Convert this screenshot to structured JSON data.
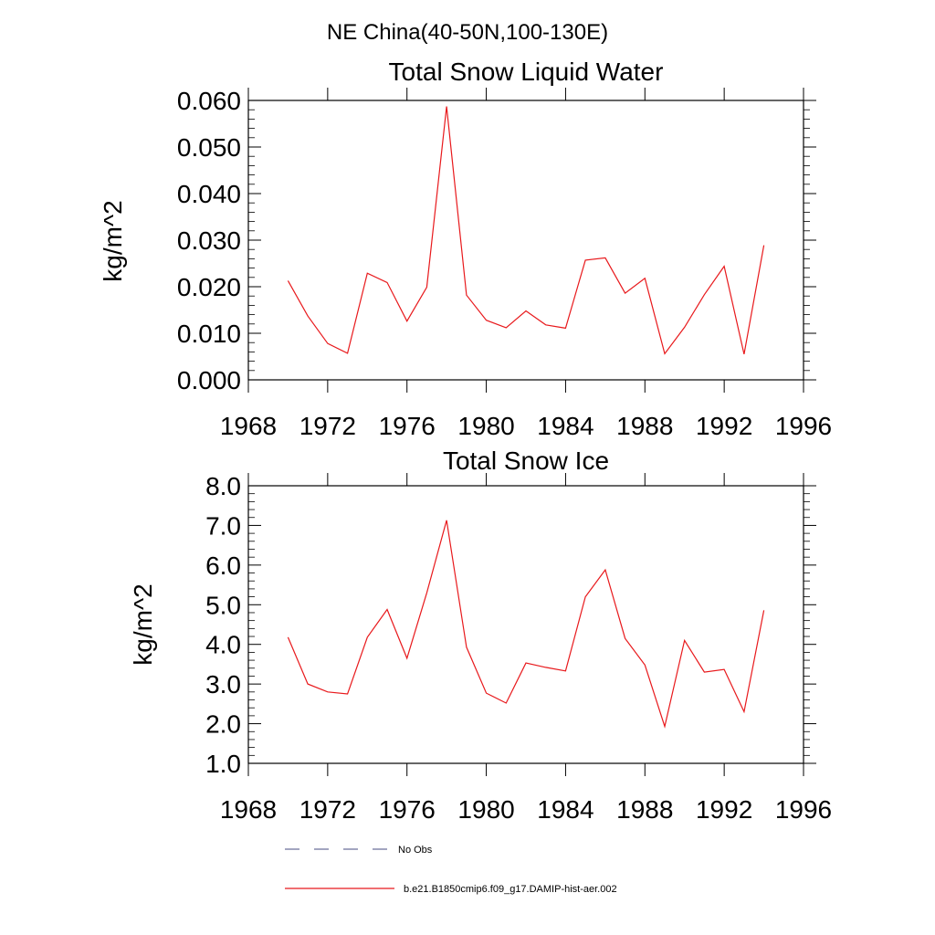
{
  "header": {
    "region_title": "NE China(40-50N,100-130E)"
  },
  "colors": {
    "model_line": "#e8191c",
    "obs_line": "#6a6f9a",
    "axis": "#000000"
  },
  "chart_data": [
    {
      "type": "line",
      "title": "Total Snow Liquid Water",
      "xlabel": "",
      "ylabel": "kg/m^2",
      "xlim": [
        1968,
        1996
      ],
      "ylim": [
        0.0,
        0.06
      ],
      "xticks": [
        1968,
        1972,
        1976,
        1980,
        1984,
        1988,
        1992,
        1996
      ],
      "xtick_labels": [
        "1968",
        "1972",
        "1976",
        "1980",
        "1984",
        "1988",
        "1992",
        "1996"
      ],
      "yticks": [
        0.0,
        0.01,
        0.02,
        0.03,
        0.04,
        0.05,
        0.06
      ],
      "ytick_labels": [
        "0.000",
        "0.010",
        "0.020",
        "0.030",
        "0.040",
        "0.050",
        "0.060"
      ],
      "x": [
        1970,
        1971,
        1972,
        1973,
        1974,
        1975,
        1976,
        1977,
        1978,
        1979,
        1980,
        1981,
        1982,
        1983,
        1984,
        1985,
        1986,
        1987,
        1988,
        1989,
        1990,
        1991,
        1992,
        1993,
        1994
      ],
      "series": [
        {
          "name": "b.e21.B1850cmip6.f09_g17.DAMIP-hist-aer.002",
          "values": [
            0.0213,
            0.0137,
            0.0078,
            0.0057,
            0.0229,
            0.0209,
            0.0126,
            0.0199,
            0.0587,
            0.0182,
            0.0128,
            0.0112,
            0.0148,
            0.0118,
            0.0111,
            0.0257,
            0.0262,
            0.0186,
            0.0218,
            0.0056,
            0.0113,
            0.0183,
            0.0244,
            0.0055,
            0.0289
          ]
        }
      ]
    },
    {
      "type": "line",
      "title": "Total Snow Ice",
      "xlabel": "",
      "ylabel": "kg/m^2",
      "xlim": [
        1968,
        1996
      ],
      "ylim": [
        1.0,
        8.0
      ],
      "xticks": [
        1968,
        1972,
        1976,
        1980,
        1984,
        1988,
        1992,
        1996
      ],
      "xtick_labels": [
        "1968",
        "1972",
        "1976",
        "1980",
        "1984",
        "1988",
        "1992",
        "1996"
      ],
      "yticks": [
        1.0,
        2.0,
        3.0,
        4.0,
        5.0,
        6.0,
        7.0,
        8.0
      ],
      "ytick_labels": [
        "1.0",
        "2.0",
        "3.0",
        "4.0",
        "5.0",
        "6.0",
        "7.0",
        "8.0"
      ],
      "x": [
        1970,
        1971,
        1972,
        1973,
        1974,
        1975,
        1976,
        1977,
        1978,
        1979,
        1980,
        1981,
        1982,
        1983,
        1984,
        1985,
        1986,
        1987,
        1988,
        1989,
        1990,
        1991,
        1992,
        1993,
        1994
      ],
      "series": [
        {
          "name": "b.e21.B1850cmip6.f09_g17.DAMIP-hist-aer.002",
          "values": [
            4.18,
            3.0,
            2.8,
            2.75,
            4.18,
            4.88,
            3.65,
            5.3,
            7.13,
            3.93,
            2.77,
            2.52,
            3.53,
            3.42,
            3.33,
            5.2,
            5.88,
            4.15,
            3.48,
            1.93,
            4.1,
            3.3,
            3.37,
            2.3,
            4.86
          ]
        }
      ]
    }
  ],
  "legend": {
    "entries": [
      {
        "label": "No Obs",
        "style": "dashed"
      },
      {
        "label": "b.e21.B1850cmip6.f09_g17.DAMIP-hist-aer.002",
        "style": "solid"
      }
    ]
  }
}
